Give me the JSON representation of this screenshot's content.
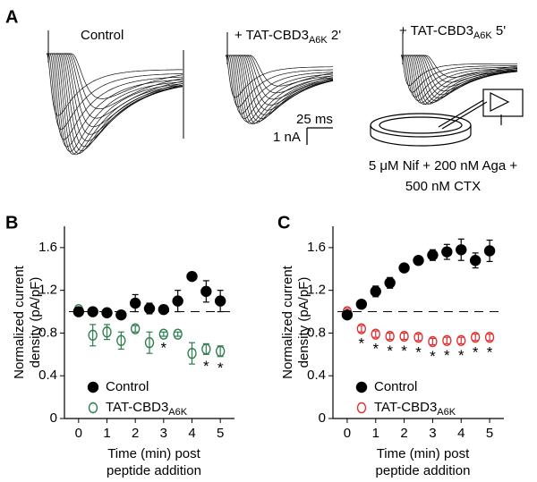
{
  "panel_a": {
    "label": "A",
    "traces": [
      {
        "title_prefix": "Control"
      },
      {
        "title_prefix": "+ TAT-CBD3",
        "title_sub": "A6K",
        "title_suffix": " 2'"
      },
      {
        "title_prefix": "+ TAT-CBD3",
        "title_sub": "A6K",
        "title_suffix": " 5'"
      }
    ],
    "scale_time": "25 ms",
    "scale_current": "1 nA",
    "solution": [
      "5 μM Nif + 200 nM Aga +",
      "500 nM CTX"
    ]
  },
  "chart_data": [
    {
      "type": "scatter",
      "panel": "B",
      "ylabel": [
        "Normalized current",
        "density (pA/pF)"
      ],
      "xlabel": [
        "Time (min) post",
        "peptide addition"
      ],
      "xlim": [
        -0.5,
        5.5
      ],
      "ylim": [
        0,
        1.8
      ],
      "xticks": [
        0,
        1,
        2,
        3,
        4,
        5
      ],
      "yticks": [
        0,
        0.4,
        0.8,
        1.2,
        1.6
      ],
      "reference_line": 1,
      "legend": "lower left",
      "series": [
        {
          "name": "Control",
          "color": "#000000",
          "marker": "filled",
          "x": [
            0,
            0.5,
            1,
            1.5,
            2,
            2.5,
            3,
            3.5,
            4,
            4.5,
            5
          ],
          "values": [
            1.0,
            1.0,
            0.99,
            0.97,
            1.08,
            1.03,
            1.02,
            1.1,
            1.33,
            1.19,
            1.1
          ],
          "errors": [
            0.02,
            0.03,
            0.03,
            0.02,
            0.08,
            0.05,
            0.04,
            0.1,
            0.02,
            0.1,
            0.1
          ]
        },
        {
          "name": "TAT-CBD3",
          "name_subscript": "A6K",
          "color": "#2e7d4f",
          "marker": "open",
          "x": [
            0,
            0.5,
            1,
            1.5,
            2,
            2.5,
            3,
            3.5,
            4,
            4.5,
            5
          ],
          "values": [
            1.02,
            0.78,
            0.81,
            0.73,
            0.84,
            0.71,
            0.79,
            0.79,
            0.61,
            0.65,
            0.63
          ],
          "errors": [
            0.02,
            0.1,
            0.07,
            0.08,
            0.03,
            0.1,
            0.02,
            0.02,
            0.1,
            0.05,
            0.05
          ]
        }
      ],
      "annotations": [
        {
          "x": 3,
          "text": "*"
        },
        {
          "x": 4.5,
          "text": "*"
        },
        {
          "x": 5,
          "text": "*"
        }
      ]
    },
    {
      "type": "scatter",
      "panel": "C",
      "ylabel": [
        "Normalized current",
        "density (pA/pF)"
      ],
      "xlabel": [
        "Time (min) post",
        "peptide addition"
      ],
      "xlim": [
        -0.5,
        5.5
      ],
      "ylim": [
        0,
        1.8
      ],
      "xticks": [
        0,
        1,
        2,
        3,
        4,
        5
      ],
      "yticks": [
        0,
        0.4,
        0.8,
        1.2,
        1.6
      ],
      "reference_line": 1,
      "legend": "lower left",
      "series": [
        {
          "name": "Control",
          "color": "#000000",
          "marker": "filled",
          "x": [
            0,
            0.5,
            1,
            1.5,
            2,
            2.5,
            3,
            3.5,
            4,
            4.5,
            5
          ],
          "values": [
            0.97,
            1.07,
            1.19,
            1.27,
            1.41,
            1.48,
            1.53,
            1.56,
            1.58,
            1.48,
            1.57
          ],
          "errors": [
            0.03,
            0.03,
            0.05,
            0.05,
            0.03,
            0.03,
            0.05,
            0.07,
            0.1,
            0.07,
            0.1
          ]
        },
        {
          "name": "TAT-CBD3",
          "name_subscript": "A6K",
          "color": "#e03030",
          "marker": "open",
          "x": [
            0,
            0.5,
            1,
            1.5,
            2,
            2.5,
            3,
            3.5,
            4,
            4.5,
            5
          ],
          "values": [
            1.0,
            0.84,
            0.79,
            0.77,
            0.77,
            0.76,
            0.72,
            0.73,
            0.73,
            0.76,
            0.76
          ],
          "errors": [
            0.03,
            0.03,
            0.03,
            0.03,
            0.03,
            0.03,
            0.03,
            0.03,
            0.03,
            0.03,
            0.03
          ]
        }
      ],
      "annotations": [
        {
          "x": 0.5,
          "text": "*"
        },
        {
          "x": 1,
          "text": "*"
        },
        {
          "x": 1.5,
          "text": "*"
        },
        {
          "x": 2,
          "text": "*"
        },
        {
          "x": 2.5,
          "text": "*"
        },
        {
          "x": 3,
          "text": "*"
        },
        {
          "x": 3.5,
          "text": "*"
        },
        {
          "x": 4,
          "text": "*"
        },
        {
          "x": 4.5,
          "text": "*"
        },
        {
          "x": 5,
          "text": "*"
        }
      ]
    }
  ]
}
